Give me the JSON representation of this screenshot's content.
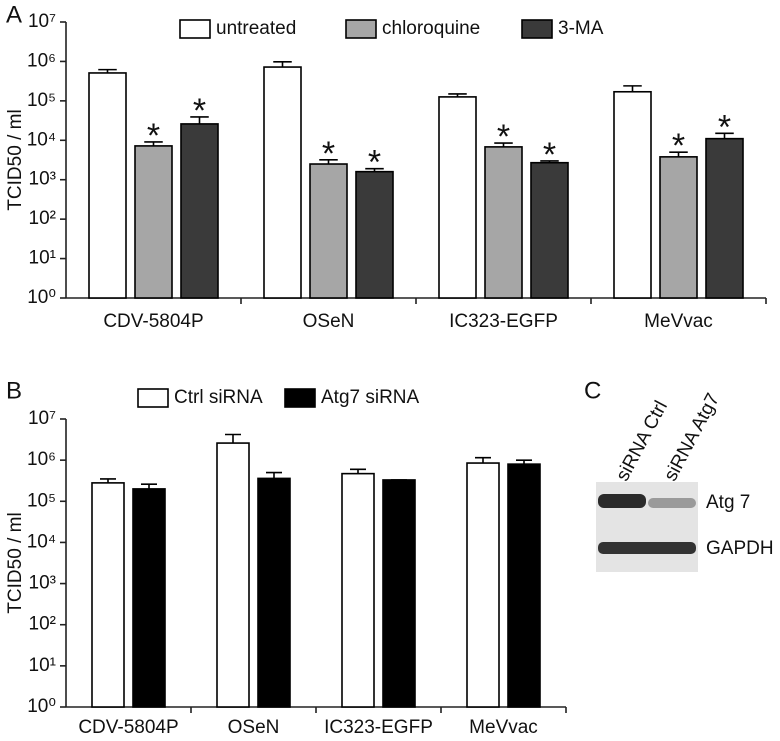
{
  "chart_data": [
    {
      "type": "bar",
      "panel_label": "A",
      "y_label": "TCID50 / ml",
      "log_scale": true,
      "legend": "top",
      "categories": [
        "CDV-5804P",
        "OSeN",
        "IC323-EGFP",
        "MeVvac"
      ],
      "ylim": [
        1,
        10000000
      ],
      "yticks": [
        {
          "value": 1,
          "label": "10⁰"
        },
        {
          "value": 10,
          "label": "10¹"
        },
        {
          "value": 100,
          "label": "10²"
        },
        {
          "value": 1000,
          "label": "10³"
        },
        {
          "value": 10000,
          "label": "10⁴"
        },
        {
          "value": 100000,
          "label": "10⁵"
        },
        {
          "value": 1000000,
          "label": "10⁶"
        },
        {
          "value": 10000000,
          "label": "10⁷"
        }
      ],
      "series": [
        {
          "name": "untreated",
          "color": "#ffffff",
          "values": [
            510000,
            720000,
            126000,
            170000
          ],
          "errors": [
            110000,
            260000,
            24000,
            70000
          ]
        },
        {
          "name": "chloroquine",
          "color": "#a6a6a6",
          "values": [
            7200,
            2500,
            6800,
            3800
          ],
          "errors": [
            1900,
            700,
            1700,
            1200
          ],
          "significance": [
            "*",
            "*",
            "*",
            "*"
          ]
        },
        {
          "name": "3-MA",
          "color": "#3a3a3a",
          "values": [
            26000,
            1600,
            2700,
            11000
          ],
          "errors": [
            13000,
            300,
            300,
            4000
          ],
          "significance": [
            "*",
            "*",
            "*",
            "*"
          ]
        }
      ]
    },
    {
      "type": "bar",
      "panel_label": "B",
      "y_label": "TCID50 / ml",
      "log_scale": true,
      "legend": "top",
      "categories": [
        "CDV-5804P",
        "OSeN",
        "IC323-EGFP",
        "MeVvac"
      ],
      "ylim": [
        1,
        10000000
      ],
      "yticks": [
        {
          "value": 1,
          "label": "10⁰"
        },
        {
          "value": 10,
          "label": "10¹"
        },
        {
          "value": 100,
          "label": "10²"
        },
        {
          "value": 1000,
          "label": "10³"
        },
        {
          "value": 10000,
          "label": "10⁴"
        },
        {
          "value": 100000,
          "label": "10⁵"
        },
        {
          "value": 1000000,
          "label": "10⁶"
        },
        {
          "value": 10000000,
          "label": "10⁷"
        }
      ],
      "series": [
        {
          "name": "Ctrl siRNA",
          "color": "#ffffff",
          "values": [
            280000,
            2600000,
            470000,
            850000
          ],
          "errors": [
            70000,
            1600000,
            130000,
            300000
          ]
        },
        {
          "name": "Atg7 siRNA",
          "color": "#000000",
          "values": [
            200000,
            360000,
            330000,
            800000
          ],
          "errors": [
            60000,
            140000,
            0,
            200000
          ]
        }
      ]
    }
  ],
  "blot": {
    "panel_label": "C",
    "lanes": [
      "siRNA Ctrl",
      "siRNA Atg7"
    ],
    "bands": [
      "Atg 7",
      "GAPDH"
    ]
  }
}
